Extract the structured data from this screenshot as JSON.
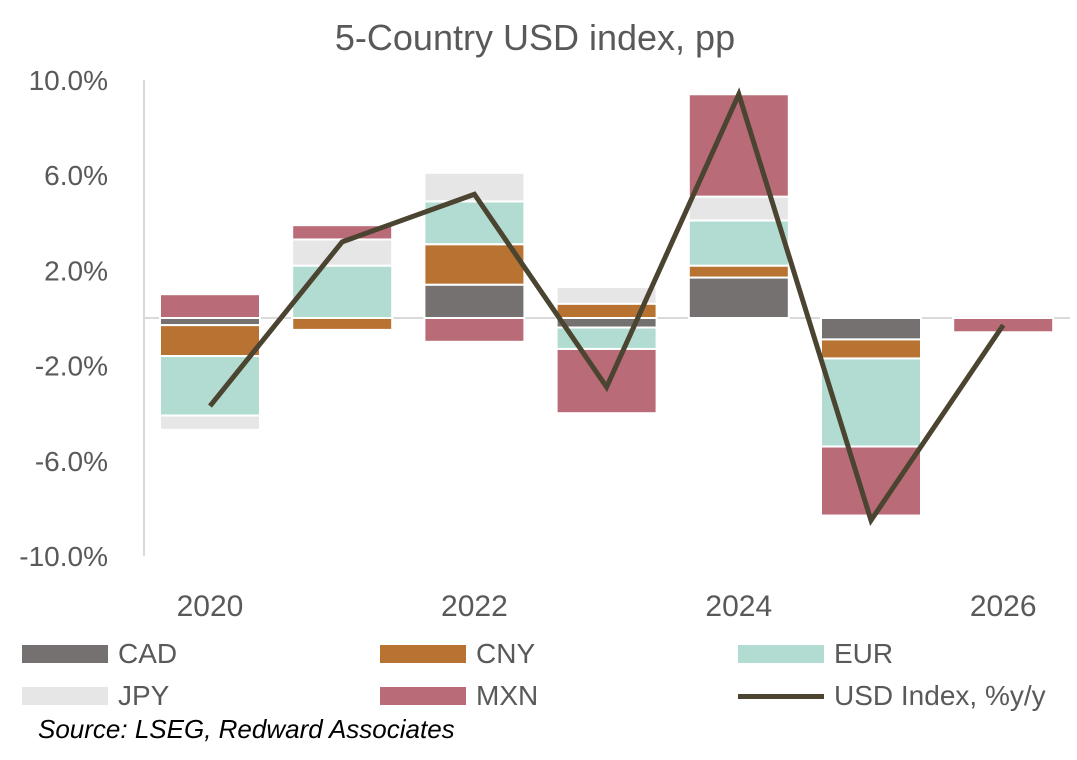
{
  "chart_data": {
    "type": "bar",
    "subtype": "stacked-bar-with-line",
    "title": "5-Country USD index, pp",
    "years": [
      2020,
      2021,
      2022,
      2023,
      2024,
      2025,
      2026
    ],
    "x_tick_labels": [
      "2020",
      "2022",
      "2024",
      "2026"
    ],
    "x_tick_years": [
      2020,
      2022,
      2024,
      2026
    ],
    "y_tick_labels": [
      "10.0%",
      "6.0%",
      "2.0%",
      "-2.0%",
      "-6.0%",
      "-10.0%"
    ],
    "ylim": [
      -10.0,
      10.0
    ],
    "y_ticks": [
      10.0,
      6.0,
      2.0,
      -2.0,
      -6.0,
      -10.0
    ],
    "series": [
      {
        "name": "CAD",
        "color": "#767171",
        "values": [
          -0.3,
          0.0,
          1.4,
          -0.4,
          1.7,
          -0.9,
          0.0
        ]
      },
      {
        "name": "CNY",
        "color": "#B87333",
        "values": [
          -1.3,
          -0.5,
          1.7,
          0.6,
          0.5,
          -0.8,
          0.0
        ]
      },
      {
        "name": "EUR",
        "color": "#B2DCD1",
        "values": [
          -2.5,
          2.2,
          1.8,
          -0.9,
          1.9,
          -3.7,
          0.0
        ]
      },
      {
        "name": "JPY",
        "color": "#E7E6E6",
        "values": [
          -0.6,
          1.1,
          1.2,
          0.7,
          1.0,
          0.0,
          0.1
        ]
      },
      {
        "name": "MXN",
        "color": "#B96B77",
        "values": [
          1.0,
          0.6,
          -1.0,
          -2.7,
          4.3,
          -2.9,
          -0.6
        ]
      }
    ],
    "line": {
      "name": "USD Index, %y/y",
      "color": "#4A4430",
      "values": [
        -3.7,
        3.2,
        5.2,
        -2.9,
        9.4,
        -8.5,
        -0.3
      ]
    }
  },
  "legend": {
    "items": [
      {
        "label": "CAD",
        "color": "#767171",
        "kind": "bar"
      },
      {
        "label": "CNY",
        "color": "#B87333",
        "kind": "bar"
      },
      {
        "label": "EUR",
        "color": "#B2DCD1",
        "kind": "bar"
      },
      {
        "label": "JPY",
        "color": "#E7E6E6",
        "kind": "bar"
      },
      {
        "label": "MXN",
        "color": "#B96B77",
        "kind": "bar"
      },
      {
        "label": "USD Index, %y/y",
        "color": "#4A4430",
        "kind": "line"
      }
    ]
  },
  "source": "Source: LSEG, Redward Associates"
}
